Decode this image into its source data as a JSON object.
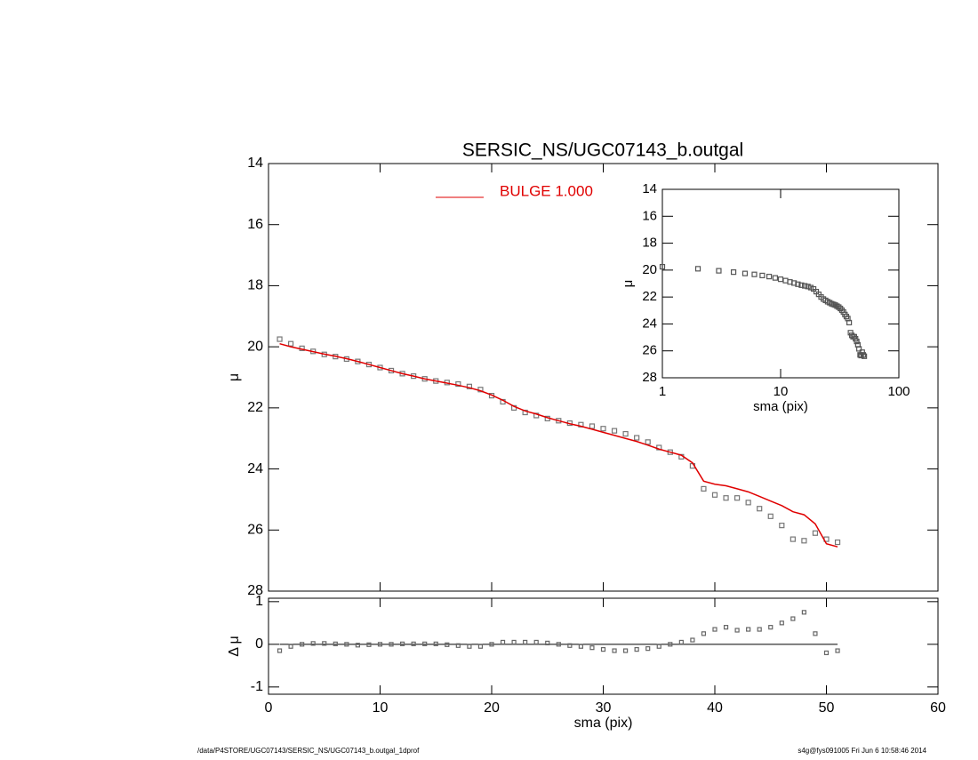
{
  "chart_data": [
    {
      "type": "scatter-line",
      "title": "SERSIC_NS/UGC07143_b.outgal",
      "ylabel": "μ",
      "x": [
        1,
        2,
        3,
        4,
        5,
        6,
        7,
        8,
        9,
        10,
        11,
        12,
        13,
        14,
        15,
        16,
        17,
        18,
        19,
        20,
        21,
        22,
        23,
        24,
        25,
        26,
        27,
        28,
        29,
        30,
        31,
        32,
        33,
        34,
        35,
        36,
        37,
        38,
        39,
        40,
        41,
        42,
        43,
        44,
        45,
        46,
        47,
        48,
        49,
        50,
        51
      ],
      "series": [
        {
          "color": "#777777",
          "values": [
            19.75,
            19.9,
            20.05,
            20.15,
            20.25,
            20.32,
            20.4,
            20.48,
            20.58,
            20.68,
            20.78,
            20.88,
            20.96,
            21.05,
            21.12,
            21.17,
            21.22,
            21.3,
            21.4,
            21.6,
            21.8,
            22.0,
            22.15,
            22.25,
            22.35,
            22.42,
            22.5,
            22.55,
            22.6,
            22.68,
            22.75,
            22.85,
            22.98,
            23.12,
            23.3,
            23.45,
            23.6,
            23.9,
            24.65,
            24.85,
            24.95,
            24.95,
            25.1,
            25.3,
            25.55,
            25.85,
            26.3,
            26.35,
            26.1,
            26.3,
            26.4
          ]
        },
        {
          "name": "BULGE  1.000",
          "color": "#e00000",
          "values": [
            19.9,
            20.0,
            20.08,
            20.16,
            20.24,
            20.31,
            20.39,
            20.48,
            20.58,
            20.68,
            20.78,
            20.88,
            20.96,
            21.05,
            21.12,
            21.19,
            21.26,
            21.34,
            21.44,
            21.58,
            21.75,
            21.95,
            22.1,
            22.2,
            22.32,
            22.42,
            22.52,
            22.6,
            22.7,
            22.8,
            22.9,
            23.0,
            23.1,
            23.22,
            23.35,
            23.45,
            23.55,
            23.8,
            24.4,
            24.5,
            24.55,
            24.65,
            24.75,
            24.9,
            25.05,
            25.2,
            25.4,
            25.5,
            25.8,
            26.45,
            26.55
          ]
        }
      ],
      "xlim": [
        0,
        60
      ],
      "xticks": [
        0,
        10,
        20,
        30,
        40,
        50,
        60
      ],
      "ylim": [
        28,
        14
      ],
      "yticks": [
        14,
        16,
        18,
        20,
        22,
        24,
        26,
        28
      ]
    },
    {
      "type": "inset",
      "ylabel": "μ",
      "xlabel": "sma (pix)",
      "log_x": true,
      "xlim": [
        1,
        100
      ],
      "xticks": [
        1,
        10,
        100
      ],
      "ylim": [
        28,
        14
      ],
      "yticks": [
        14,
        16,
        18,
        20,
        22,
        24,
        26,
        28
      ]
    },
    {
      "type": "residual",
      "ylabel": "Δ μ",
      "xlabel": "sma (pix)",
      "x": [
        1,
        2,
        3,
        4,
        5,
        6,
        7,
        8,
        9,
        10,
        11,
        12,
        13,
        14,
        15,
        16,
        17,
        18,
        19,
        20,
        21,
        22,
        23,
        24,
        25,
        26,
        27,
        28,
        29,
        30,
        31,
        32,
        33,
        34,
        35,
        36,
        37,
        38,
        39,
        40,
        41,
        42,
        43,
        44,
        45,
        46,
        47,
        48,
        49,
        50,
        51
      ],
      "values": [
        -0.15,
        -0.05,
        0.0,
        0.02,
        0.02,
        0.01,
        0.0,
        -0.02,
        -0.01,
        0.0,
        0.0,
        0.01,
        0.01,
        0.01,
        0.01,
        -0.01,
        -0.03,
        -0.05,
        -0.05,
        0.0,
        0.05,
        0.05,
        0.05,
        0.05,
        0.03,
        0.0,
        -0.03,
        -0.05,
        -0.08,
        -0.12,
        -0.15,
        -0.15,
        -0.12,
        -0.1,
        -0.05,
        0.0,
        0.05,
        0.1,
        0.25,
        0.35,
        0.4,
        0.33,
        0.35,
        0.35,
        0.4,
        0.5,
        0.6,
        0.75,
        0.25,
        -0.2,
        -0.15
      ],
      "xlim": [
        0,
        60
      ],
      "xticks": [
        0,
        10,
        20,
        30,
        40,
        50,
        60
      ],
      "ylim": [
        -1.17,
        1.08
      ],
      "yticks": [
        -1,
        0,
        1
      ]
    }
  ],
  "footer": {
    "left": "/data/P4STORE/UGC07143/SERSIC_NS/UGC07143_b.outgal_1dprof",
    "right": "s4g@fys091005  Fri Jun  6 10:58:46 2014"
  }
}
